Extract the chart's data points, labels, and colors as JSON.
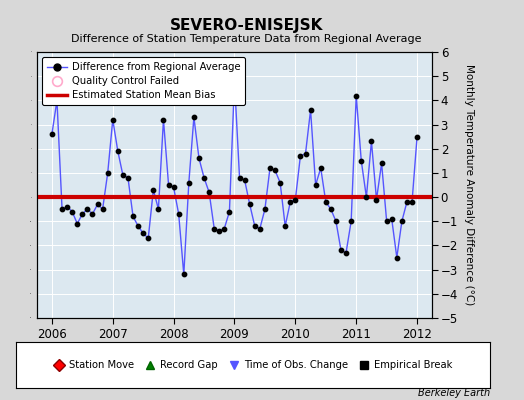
{
  "title": "SEVERO-ENISEJSK",
  "subtitle": "Difference of Station Temperature Data from Regional Average",
  "ylabel": "Monthly Temperature Anomaly Difference (°C)",
  "bias": 0.0,
  "ylim": [
    -5,
    6
  ],
  "yticks": [
    -5,
    -4,
    -3,
    -2,
    -1,
    0,
    1,
    2,
    3,
    4,
    5,
    6
  ],
  "xlim": [
    2005.75,
    2012.25
  ],
  "xticks": [
    2006,
    2007,
    2008,
    2009,
    2010,
    2011,
    2012
  ],
  "bg_color": "#d8d8d8",
  "plot_bg_color": "#dce8f0",
  "line_color": "#5555ff",
  "bias_color": "#cc0000",
  "marker_color": "black",
  "data": {
    "x": [
      2006.0,
      2006.083,
      2006.167,
      2006.25,
      2006.333,
      2006.417,
      2006.5,
      2006.583,
      2006.667,
      2006.75,
      2006.833,
      2006.917,
      2007.0,
      2007.083,
      2007.167,
      2007.25,
      2007.333,
      2007.417,
      2007.5,
      2007.583,
      2007.667,
      2007.75,
      2007.833,
      2007.917,
      2008.0,
      2008.083,
      2008.167,
      2008.25,
      2008.333,
      2008.417,
      2008.5,
      2008.583,
      2008.667,
      2008.75,
      2008.833,
      2008.917,
      2009.0,
      2009.083,
      2009.167,
      2009.25,
      2009.333,
      2009.417,
      2009.5,
      2009.583,
      2009.667,
      2009.75,
      2009.833,
      2009.917,
      2010.0,
      2010.083,
      2010.167,
      2010.25,
      2010.333,
      2010.417,
      2010.5,
      2010.583,
      2010.667,
      2010.75,
      2010.833,
      2010.917,
      2011.0,
      2011.083,
      2011.167,
      2011.25,
      2011.333,
      2011.417,
      2011.5,
      2011.583,
      2011.667,
      2011.75,
      2011.833,
      2011.917,
      2012.0
    ],
    "y": [
      2.6,
      4.0,
      -0.5,
      -0.4,
      -0.6,
      -1.1,
      -0.7,
      -0.5,
      -0.7,
      -0.3,
      -0.5,
      1.0,
      3.2,
      1.9,
      0.9,
      0.8,
      -0.8,
      -1.2,
      -1.5,
      -1.7,
      0.3,
      -0.5,
      3.2,
      0.5,
      0.4,
      -0.7,
      -3.2,
      0.6,
      3.3,
      1.6,
      0.8,
      0.2,
      -1.3,
      -1.4,
      -1.3,
      -0.6,
      4.8,
      0.8,
      0.7,
      -0.3,
      -1.2,
      -1.3,
      -0.5,
      1.2,
      1.1,
      0.6,
      -1.2,
      -0.2,
      -0.1,
      1.7,
      1.8,
      3.6,
      0.5,
      1.2,
      -0.2,
      -0.5,
      -1.0,
      -2.2,
      -2.3,
      -1.0,
      4.2,
      1.5,
      0.0,
      2.3,
      -0.1,
      1.4,
      -1.0,
      -0.9,
      -2.5,
      -1.0,
      -0.2,
      -0.2,
      2.5
    ]
  },
  "watermark": "Berkeley Earth",
  "legend1_labels": [
    "Difference from Regional Average",
    "Quality Control Failed",
    "Estimated Station Mean Bias"
  ],
  "legend2_labels": [
    "Station Move",
    "Record Gap",
    "Time of Obs. Change",
    "Empirical Break"
  ]
}
